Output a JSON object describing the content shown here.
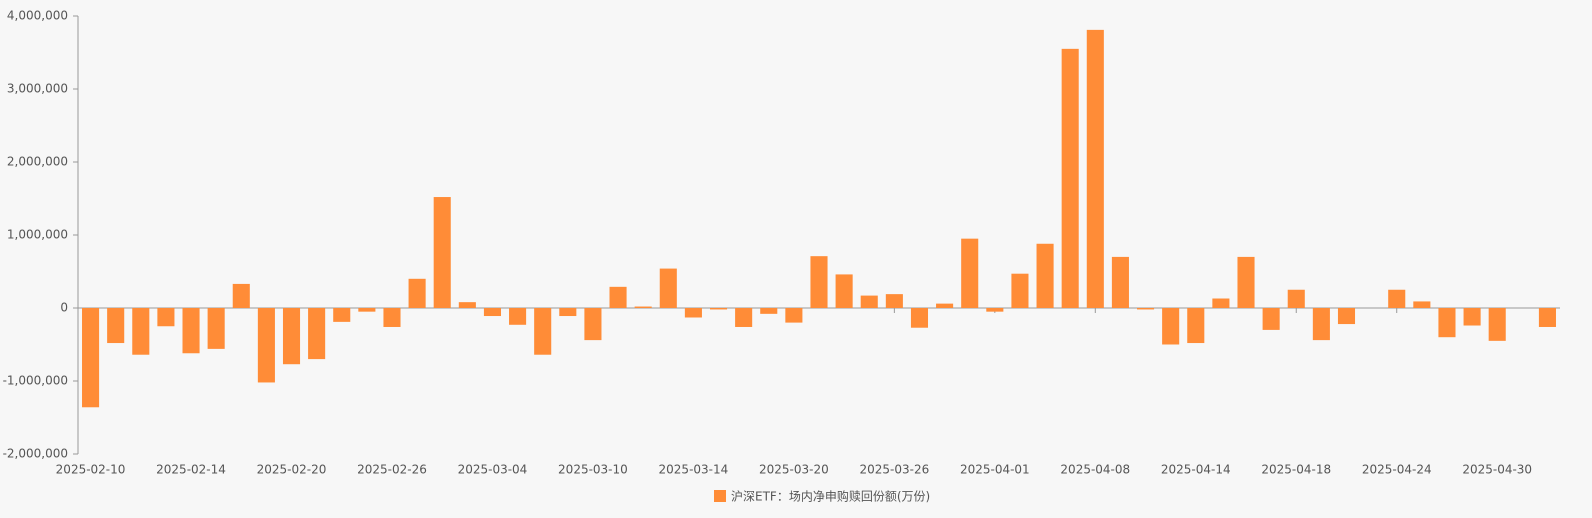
{
  "chart_data": {
    "type": "bar",
    "categories": [
      "2025-02-10",
      null,
      null,
      null,
      "2025-02-14",
      null,
      null,
      null,
      "2025-02-20",
      null,
      null,
      null,
      "2025-02-26",
      null,
      null,
      null,
      "2025-03-04",
      null,
      null,
      null,
      "2025-03-10",
      null,
      null,
      null,
      "2025-03-14",
      null,
      null,
      null,
      "2025-03-20",
      null,
      null,
      null,
      "2025-03-26",
      null,
      null,
      null,
      "2025-04-01",
      null,
      null,
      null,
      "2025-04-08",
      null,
      null,
      null,
      "2025-04-14",
      null,
      null,
      null,
      "2025-04-18",
      null,
      null,
      null,
      "2025-04-24",
      null,
      null,
      null,
      "2025-04-30",
      null,
      null
    ],
    "series": [
      {
        "name": "沪深ETF：场内净申购赎回份额(万份)",
        "color": "#ff8c37",
        "values": [
          -1360000,
          -480000,
          -640000,
          -250000,
          -620000,
          -560000,
          330000,
          -1020000,
          -770000,
          -700000,
          -190000,
          -50000,
          -260000,
          400000,
          1520000,
          80000,
          -110000,
          -230000,
          -640000,
          -110000,
          -440000,
          290000,
          20000,
          540000,
          -130000,
          -20000,
          -260000,
          -80000,
          -200000,
          710000,
          460000,
          170000,
          190000,
          -270000,
          60000,
          950000,
          -50000,
          470000,
          880000,
          3550000,
          3810000,
          700000,
          -20000,
          -500000,
          -480000,
          130000,
          700000,
          -300000,
          250000,
          -440000,
          -220000,
          null,
          250000,
          90000,
          -400000,
          -240000,
          -450000,
          null,
          -260000
        ]
      }
    ],
    "ylim": [
      -2000000,
      4000000
    ],
    "yticks": [
      {
        "value": -2000000,
        "label": "-2,000,000"
      },
      {
        "value": -1000000,
        "label": "-1,000,000"
      },
      0,
      {
        "value": 1000000,
        "label": "1,000,000"
      },
      {
        "value": 2000000,
        "label": "2,000,000"
      },
      {
        "value": 3000000,
        "label": "3,000,000"
      },
      {
        "value": 4000000,
        "label": "4,000,000"
      }
    ],
    "legend": "bottom"
  }
}
